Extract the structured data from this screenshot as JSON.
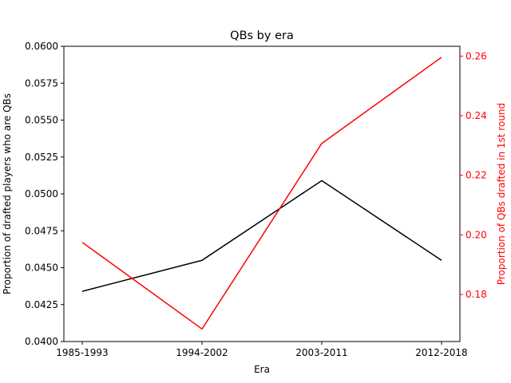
{
  "chart_data": {
    "type": "line",
    "title": "QBs by era",
    "xlabel": "Era",
    "categories": [
      "1985-1993",
      "1994-2002",
      "2003-2011",
      "2012-2018"
    ],
    "left_axis": {
      "label": "Proportion of drafted players who are QBs",
      "color": "#000000",
      "ylim": [
        0.04,
        0.06
      ],
      "ticks": [
        0.04,
        0.0425,
        0.045,
        0.0475,
        0.05,
        0.0525,
        0.055,
        0.0575,
        0.06
      ],
      "tick_labels": [
        "0.0400",
        "0.0425",
        "0.0450",
        "0.0475",
        "0.0500",
        "0.0525",
        "0.0550",
        "0.0575",
        "0.0600"
      ]
    },
    "right_axis": {
      "label": "Proportion of QBs drafted in 1st round",
      "color": "#ff0000",
      "ylim": [
        0.1642,
        0.2633
      ],
      "ticks": [
        0.18,
        0.2,
        0.22,
        0.24,
        0.26
      ],
      "tick_labels": [
        "0.18",
        "0.20",
        "0.22",
        "0.24",
        "0.26"
      ]
    },
    "series": [
      {
        "axis": "left",
        "color": "#000000",
        "values": [
          0.0434,
          0.0455,
          0.0509,
          0.0455
        ]
      },
      {
        "axis": "right",
        "color": "#ff0000",
        "values": [
          0.1975,
          0.1684,
          0.2307,
          0.2596
        ]
      }
    ],
    "grid": false,
    "legend": "none"
  }
}
